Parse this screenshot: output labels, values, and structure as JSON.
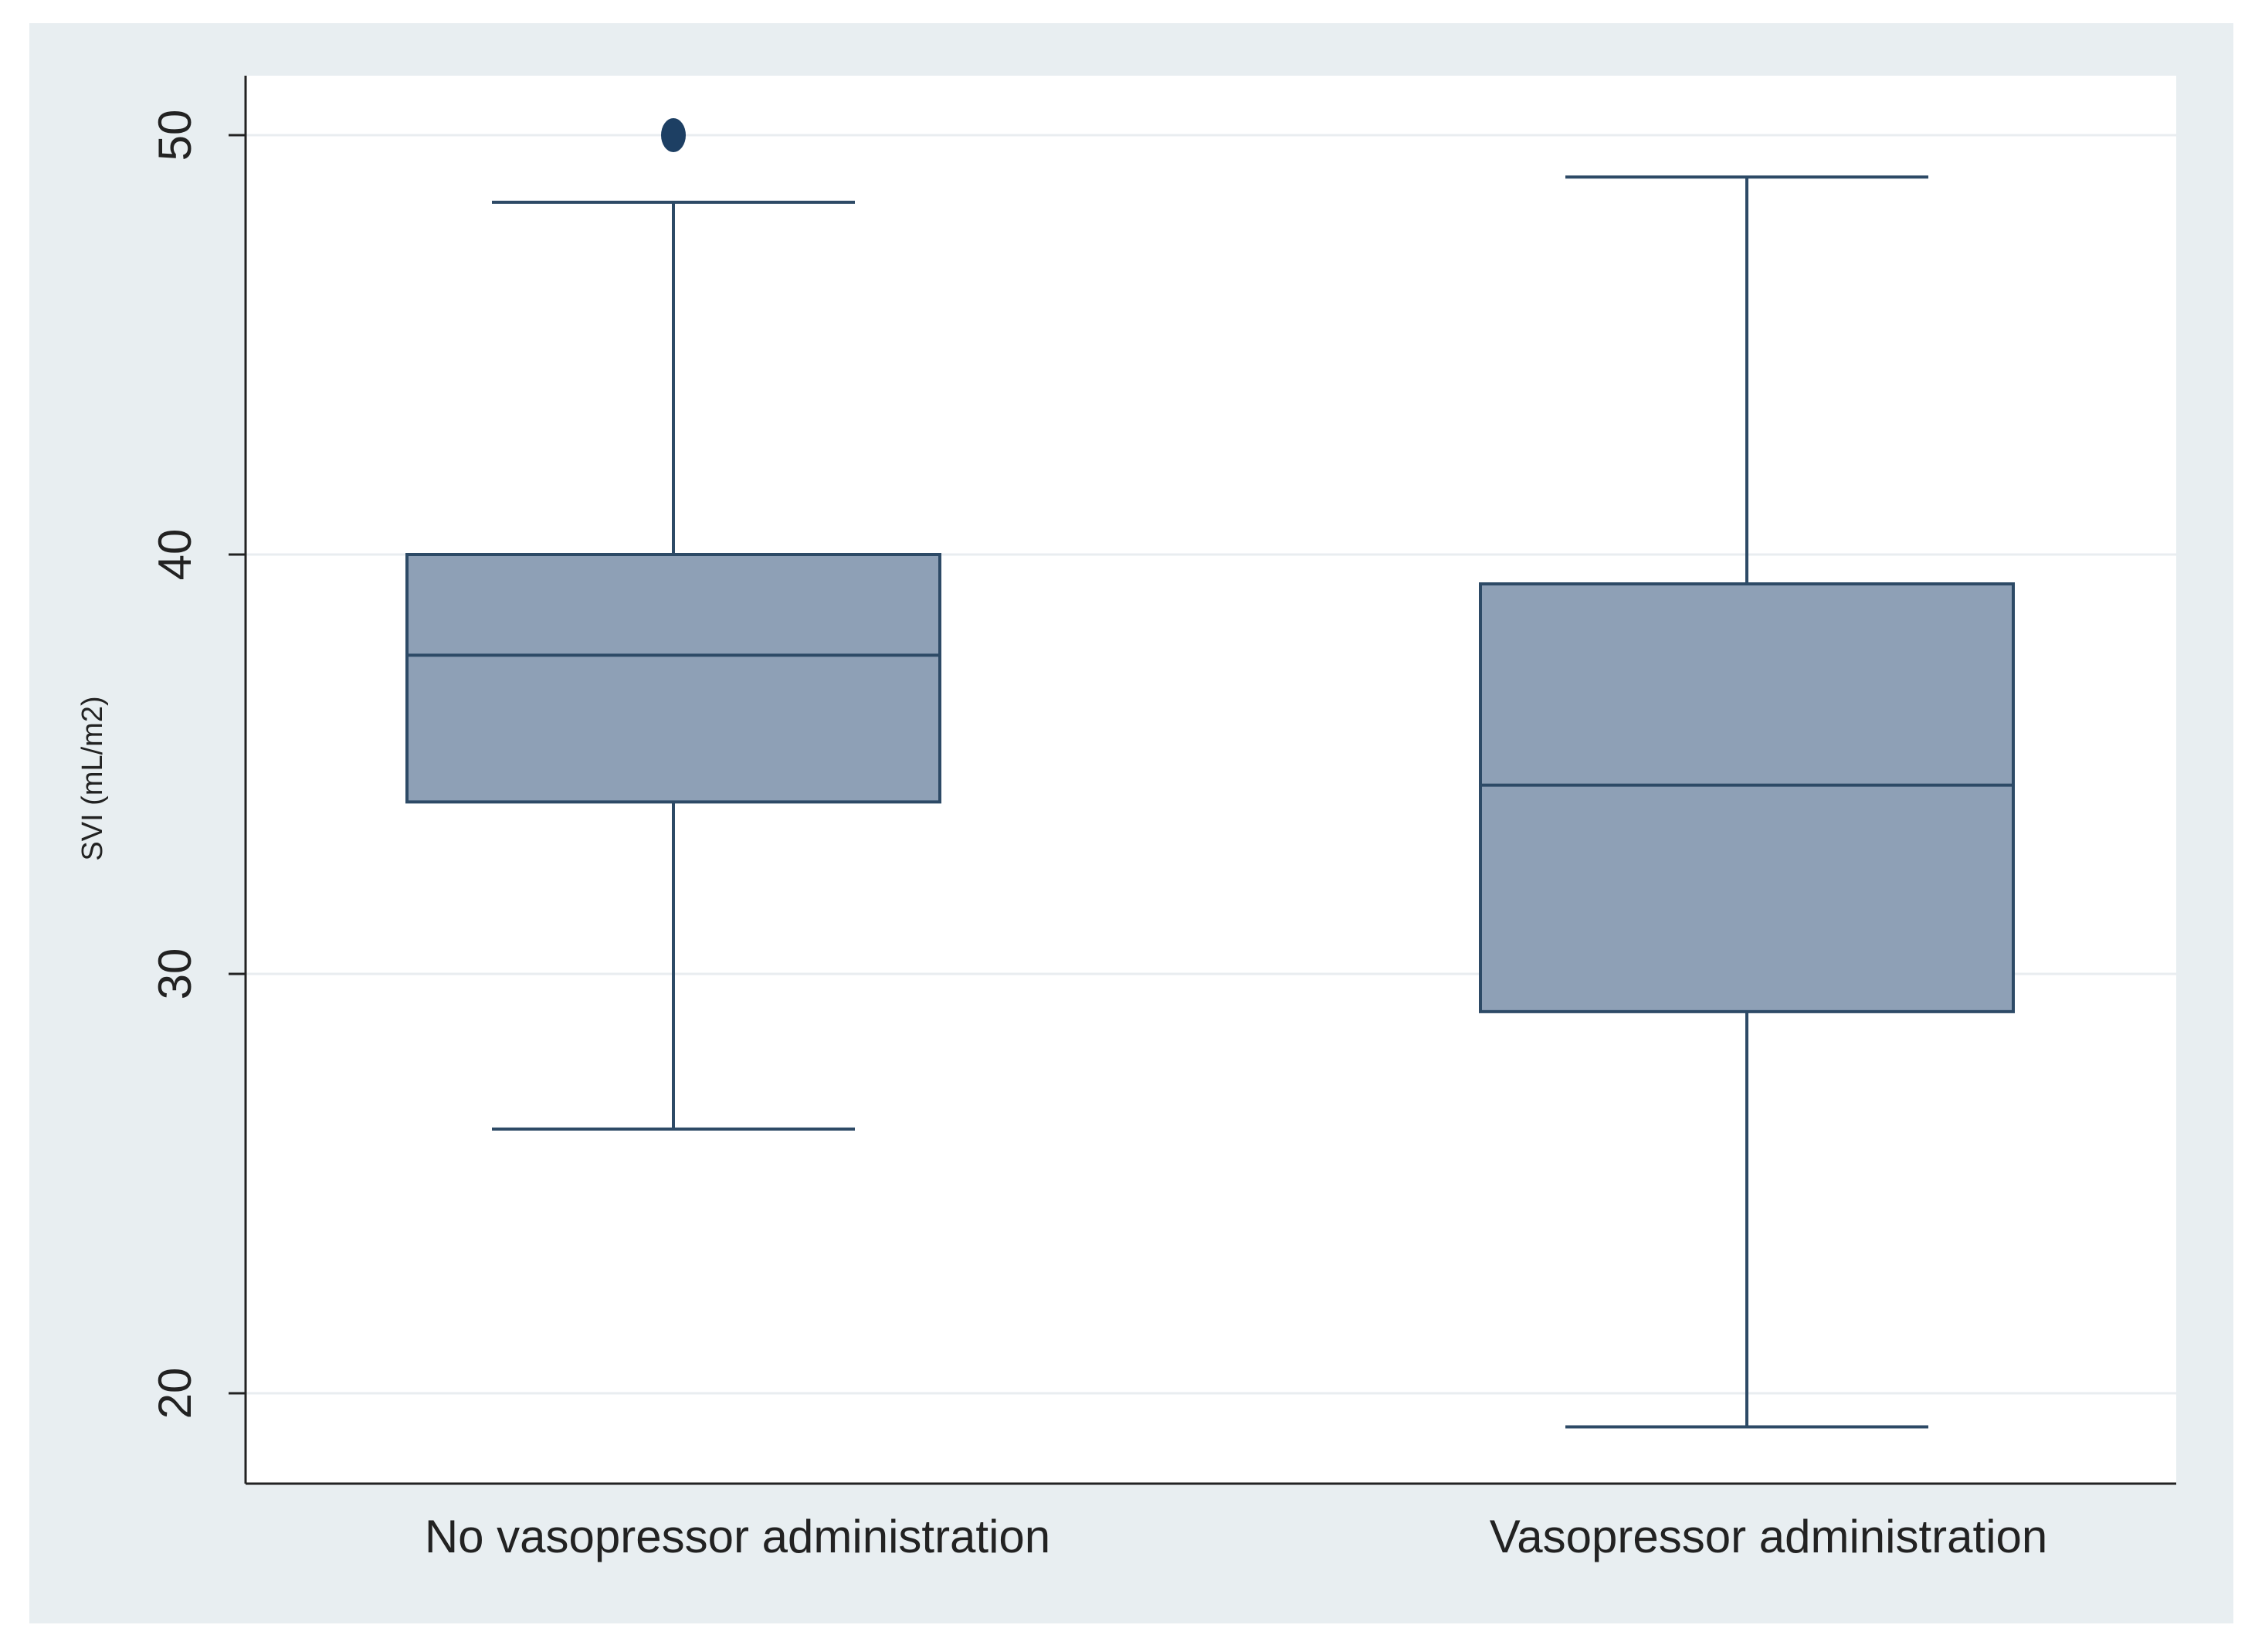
{
  "chart_data": {
    "type": "boxplot",
    "title": "",
    "xlabel": "",
    "ylabel": "SVI (mL/m2)",
    "ylim": [
      17.9,
      51.4
    ],
    "yticks": [
      20,
      30,
      40,
      50
    ],
    "ytick_labels": [
      "20",
      "30",
      "40",
      "50"
    ],
    "grid": true,
    "categories": [
      "No vasopressor administration",
      "Vasopressor administration"
    ],
    "boxes": [
      {
        "category": "No vasopressor administration",
        "whisker_low": 26.3,
        "q1": 34.1,
        "median": 37.6,
        "q3": 40.0,
        "whisker_high": 48.4,
        "outliers": [
          50.0
        ]
      },
      {
        "category": "Vasopressor administration",
        "whisker_low": 19.2,
        "q1": 29.1,
        "median": 34.5,
        "q3": 39.3,
        "whisker_high": 49.0,
        "outliers": []
      }
    ],
    "colors": {
      "box_fill": "#8ea0b6",
      "box_stroke": "#2d4a66",
      "outlier": "#1d3f63",
      "grid": "#e9edf0",
      "panel": "#e8eef1",
      "plot_bg": "#ffffff",
      "axis": "#222222"
    }
  }
}
